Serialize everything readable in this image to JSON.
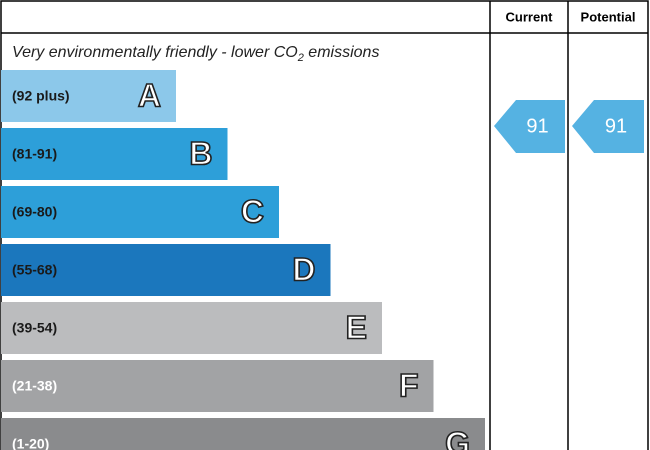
{
  "header": {
    "current": "Current",
    "potential": "Potential"
  },
  "subtitle": {
    "before": "Very environmentally friendly - lower CO",
    "subscript": "2",
    "after": " emissions"
  },
  "bands": [
    {
      "range": "(92 plus)",
      "letter": "A",
      "color": "#8cc8ea",
      "text_color": "#1a1a1a"
    },
    {
      "range": "(81-91)",
      "letter": "B",
      "color": "#2d9fd9",
      "text_color": "#1a1a1a"
    },
    {
      "range": "(69-80)",
      "letter": "C",
      "color": "#2d9fd9",
      "text_color": "#1a1a1a"
    },
    {
      "range": "(55-68)",
      "letter": "D",
      "color": "#1b77bd",
      "text_color": "#1a1a1a"
    },
    {
      "range": "(39-54)",
      "letter": "E",
      "color": "#bbbcbe",
      "text_color": "#1a1a1a"
    },
    {
      "range": "(21-38)",
      "letter": "F",
      "color": "#a2a3a5",
      "text_color": "#ffffff"
    },
    {
      "range": "(1-20)",
      "letter": "G",
      "color": "#8a8b8d",
      "text_color": "#ffffff"
    }
  ],
  "current": {
    "value": 91,
    "color": "#55b2e2"
  },
  "potential": {
    "value": 91,
    "color": "#55b2e2"
  }
}
